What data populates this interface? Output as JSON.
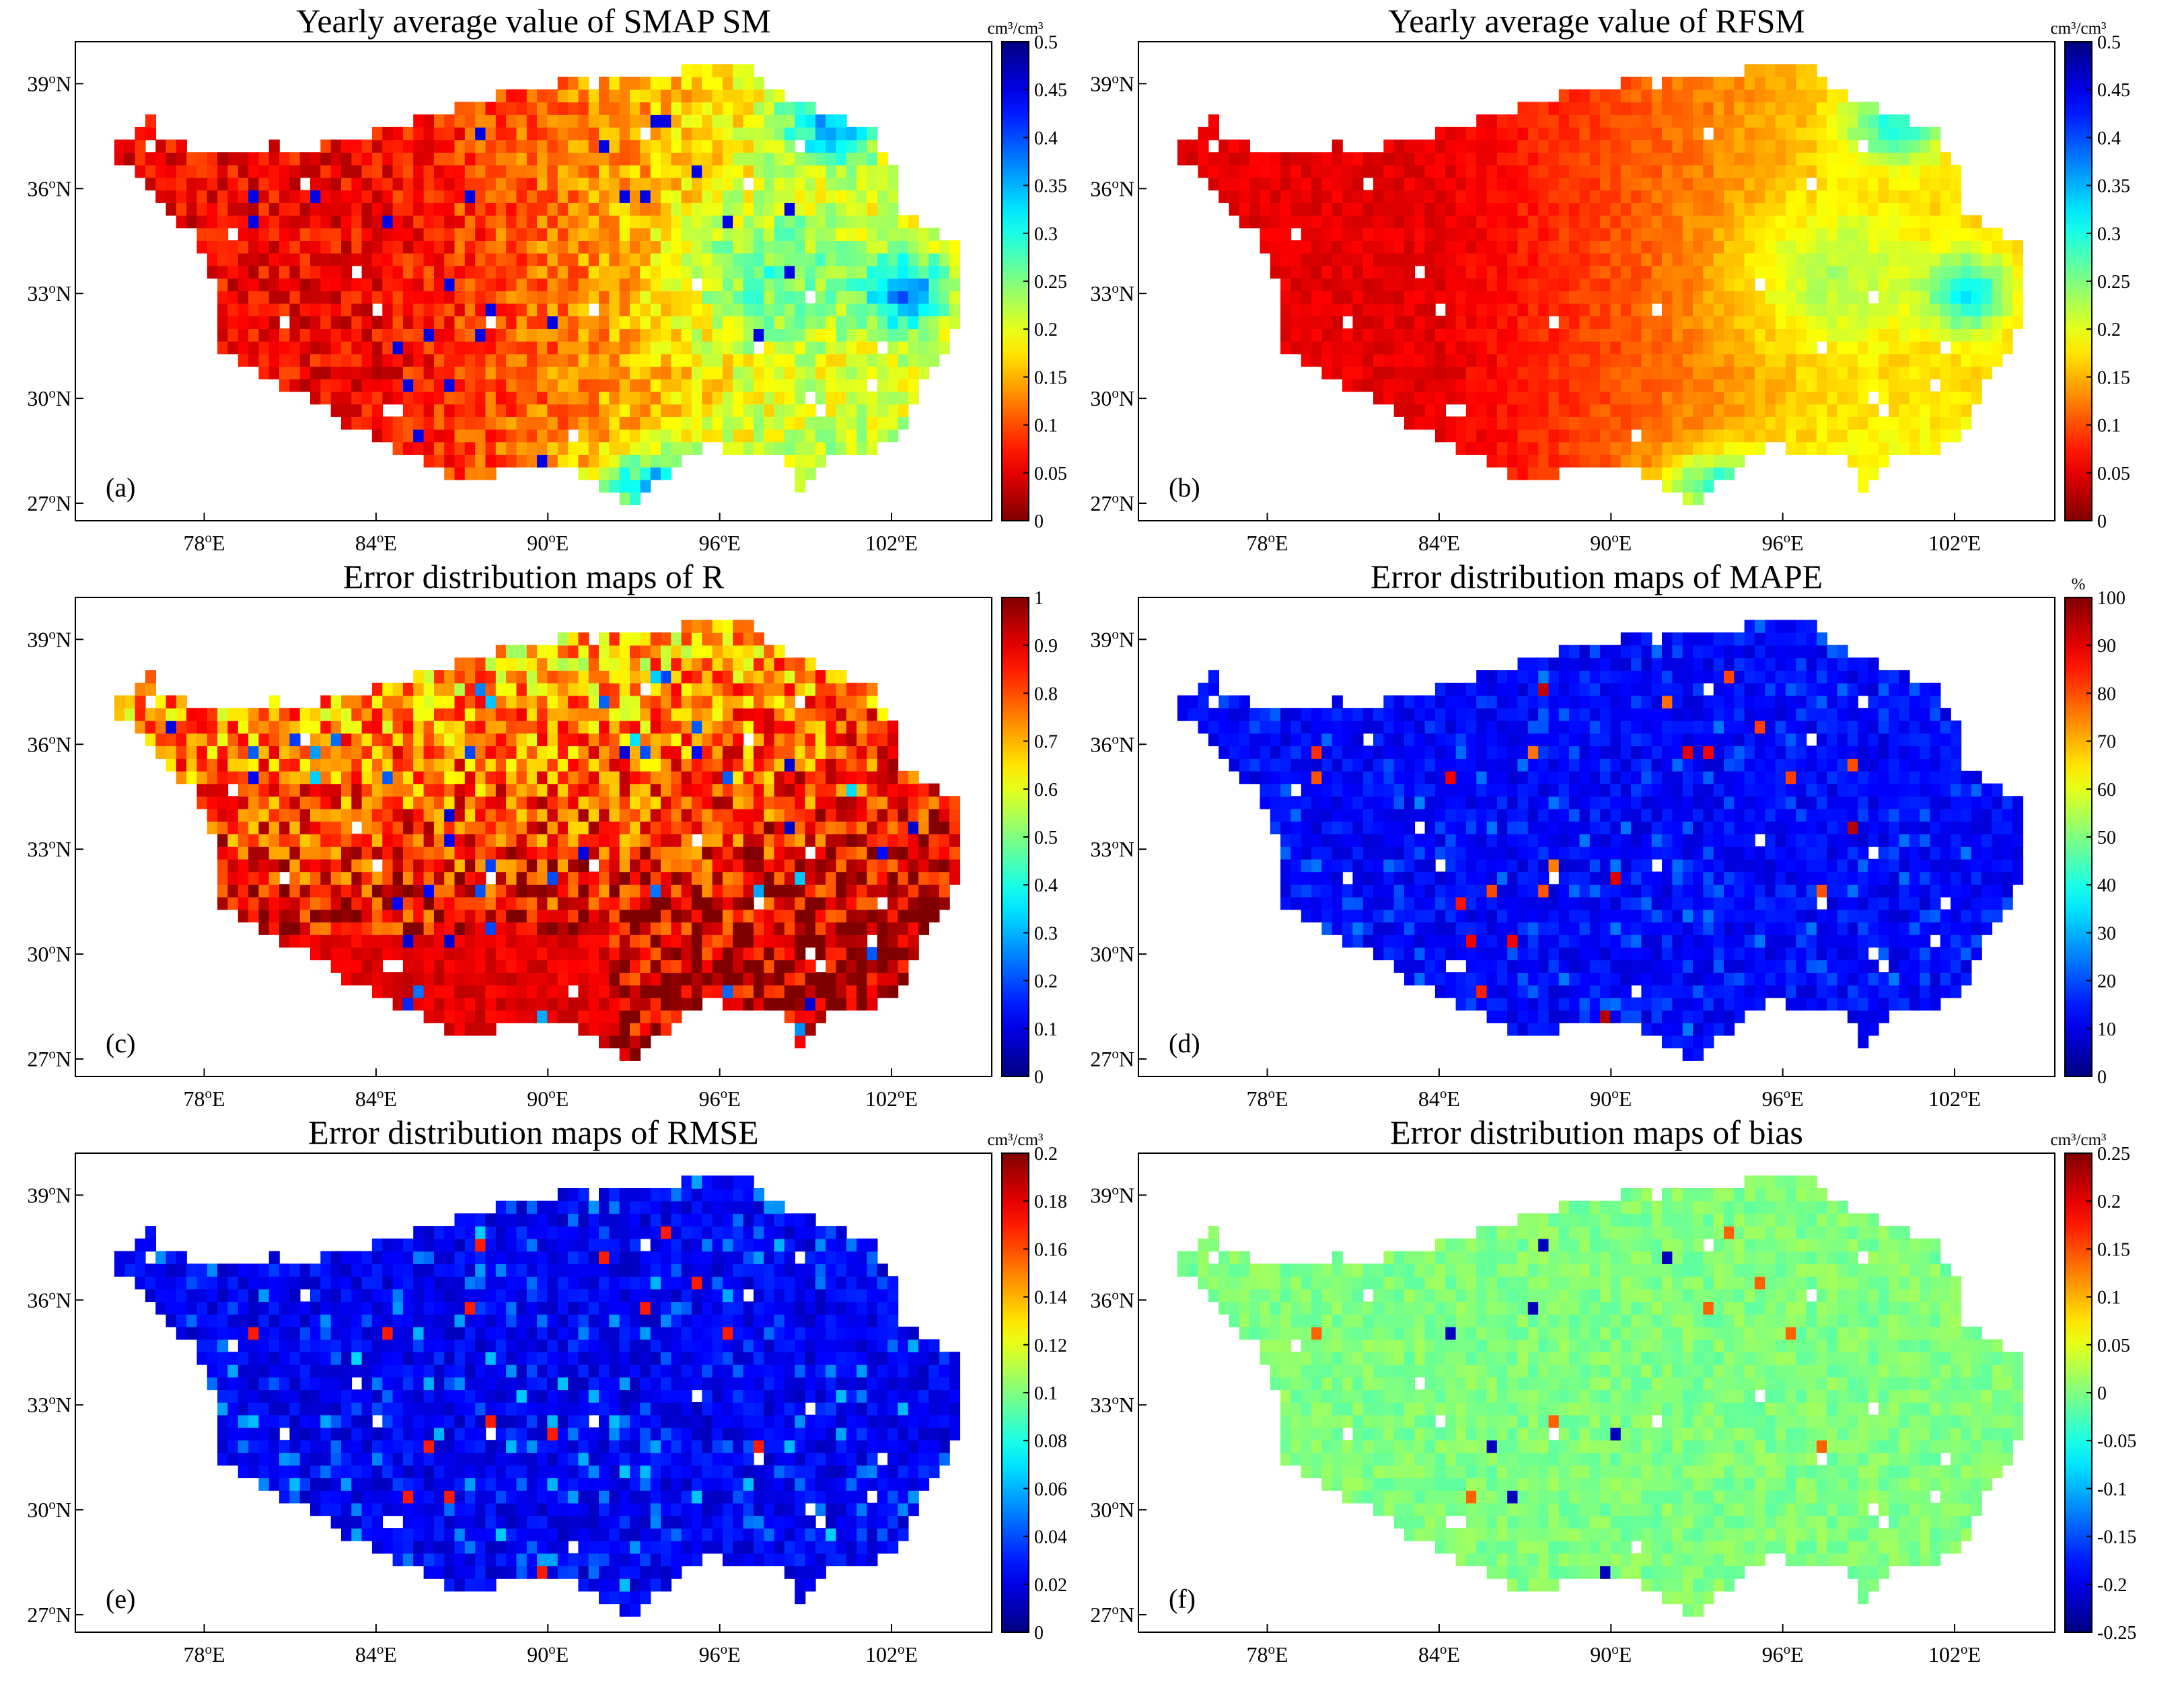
{
  "figure": {
    "lon_ticks": [
      "78",
      "84",
      "90",
      "96",
      "102"
    ],
    "lat_ticks": [
      "39",
      "36",
      "33",
      "30",
      "27"
    ],
    "degree_symbol": "o",
    "east_suffix": "E",
    "north_suffix": "N"
  },
  "panels": [
    {
      "id": "a",
      "label": "(a)",
      "title": "Yearly average value of SMAP SM",
      "unit": "cm³/cm³",
      "colormap": "jet_reversed",
      "field": "sm",
      "cbar_range": [
        0,
        0.5
      ],
      "cbar_ticks": [
        "0.5",
        "0.45",
        "0.4",
        "0.35",
        "0.3",
        "0.25",
        "0.2",
        "0.15",
        "0.1",
        "0.05",
        "0"
      ]
    },
    {
      "id": "b",
      "label": "(b)",
      "title": "Yearly average value of RFSM",
      "unit": "cm³/cm³",
      "colormap": "jet_reversed",
      "field": "rfsm",
      "cbar_range": [
        0,
        0.5
      ],
      "cbar_ticks": [
        "0.5",
        "0.45",
        "0.4",
        "0.35",
        "0.3",
        "0.25",
        "0.2",
        "0.15",
        "0.1",
        "0.05",
        "0"
      ]
    },
    {
      "id": "c",
      "label": "(c)",
      "title": "Error distribution maps of R",
      "unit": "",
      "colormap": "jet",
      "field": "r",
      "cbar_range": [
        0,
        1
      ],
      "cbar_ticks": [
        "1",
        "0.9",
        "0.8",
        "0.7",
        "0.6",
        "0.5",
        "0.4",
        "0.3",
        "0.2",
        "0.1",
        "0"
      ]
    },
    {
      "id": "d",
      "label": "(d)",
      "title": "Error distribution maps of MAPE",
      "unit": "%",
      "colormap": "jet",
      "field": "mape",
      "cbar_range": [
        0,
        100
      ],
      "cbar_ticks": [
        "100",
        "90",
        "80",
        "70",
        "60",
        "50",
        "40",
        "30",
        "20",
        "10",
        "0"
      ]
    },
    {
      "id": "e",
      "label": "(e)",
      "title": "Error distribution maps of RMSE",
      "unit": "cm³/cm³",
      "colormap": "jet",
      "field": "rmse",
      "cbar_range": [
        0,
        0.2
      ],
      "cbar_ticks": [
        "0.2",
        "0.18",
        "0.16",
        "0.14",
        "0.12",
        "0.1",
        "0.08",
        "0.06",
        "0.04",
        "0.02",
        "0"
      ]
    },
    {
      "id": "f",
      "label": "(f)",
      "title": "Error distribution maps of bias",
      "unit": "cm³/cm³",
      "colormap": "jet",
      "field": "bias",
      "cbar_range": [
        -0.25,
        0.25
      ],
      "cbar_ticks": [
        "0.25",
        "0.2",
        "0.15",
        "0.1",
        "0.05",
        "0",
        "-0.05",
        "-0.1",
        "-0.15",
        "-0.2",
        "-0.25"
      ]
    }
  ],
  "chart_data": [
    {
      "type": "heatmap",
      "title": "Yearly average value of SMAP SM",
      "colorbar_label": "cm³/cm³",
      "x_range": [
        73.5,
        105.5
      ],
      "y_range": [
        26.5,
        40.2
      ],
      "color_range": [
        0,
        0.5
      ],
      "dominant_values": {
        "western_plateau": 0.07,
        "central_east": 0.18,
        "southeast_corner": 0.3,
        "northeast_lakes": 0.35
      }
    },
    {
      "type": "heatmap",
      "title": "Yearly average value of RFSM",
      "colorbar_label": "cm³/cm³",
      "x_range": [
        73.5,
        105.5
      ],
      "y_range": [
        26.5,
        40.2
      ],
      "color_range": [
        0,
        0.5
      ],
      "dominant_values": {
        "western_plateau": 0.06,
        "central_east": 0.16,
        "southeast_corner": 0.3,
        "northeast_lakes": 0.25
      }
    },
    {
      "type": "heatmap",
      "title": "Error distribution maps of R",
      "colorbar_label": "",
      "x_range": [
        73.5,
        105.5
      ],
      "y_range": [
        26.5,
        40.2
      ],
      "color_range": [
        0,
        1
      ],
      "dominant_values": {
        "southern_belt": 0.9,
        "central": 0.8,
        "northern": 0.65
      }
    },
    {
      "type": "heatmap",
      "title": "Error distribution maps of MAPE",
      "colorbar_label": "%",
      "x_range": [
        73.5,
        105.5
      ],
      "y_range": [
        26.5,
        40.2
      ],
      "color_range": [
        0,
        100
      ],
      "dominant_values": {
        "typical": 15,
        "scattered_hotspots": 80
      }
    },
    {
      "type": "heatmap",
      "title": "Error distribution maps of RMSE",
      "colorbar_label": "cm³/cm³",
      "x_range": [
        73.5,
        105.5
      ],
      "y_range": [
        26.5,
        40.2
      ],
      "color_range": [
        0,
        0.2
      ],
      "dominant_values": {
        "typical": 0.03,
        "scattered_hotspots": 0.18
      }
    },
    {
      "type": "heatmap",
      "title": "Error distribution maps of bias",
      "colorbar_label": "cm³/cm³",
      "x_range": [
        73.5,
        105.5
      ],
      "y_range": [
        26.5,
        40.2
      ],
      "color_range": [
        -0.25,
        0.25
      ],
      "dominant_values": {
        "typical": 0.0,
        "scattered_extremes": [
          -0.25,
          0.15
        ]
      }
    }
  ]
}
